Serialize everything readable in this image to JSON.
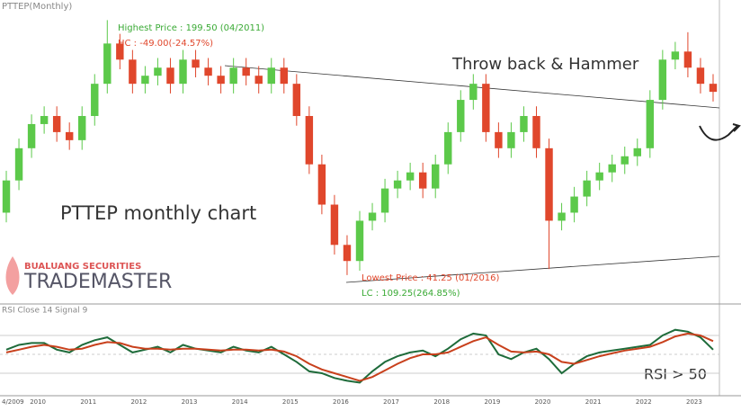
{
  "chart_data": {
    "type": "candlestick",
    "title": "PTTEP(Monthly)",
    "annotations": {
      "highest": "Highest Price : 199.50 (04/2011)",
      "hc": "HC : -49.00(-24.57%)",
      "throwback": "Throw back & Hammer",
      "chart_name": "PTTEP monthly chart",
      "lowest": "Lowest Price : 41.25 (01/2016)",
      "lc": "LC : 109.25(264.85%)",
      "rsi_note": "RSI > 50"
    },
    "logo": {
      "company": "BUALUANG SECURITIES",
      "product": "TRADEMASTER"
    },
    "x_labels": [
      "4/2009",
      "2010",
      "2011",
      "2012",
      "2013",
      "2014",
      "2015",
      "2016",
      "2017",
      "2018",
      "2019",
      "2020",
      "2021",
      "2022",
      "2023"
    ],
    "ylim": [
      25,
      212
    ],
    "up_color": "#5cc94a",
    "down_color": "#e0472c",
    "open": [
      80,
      100,
      120,
      135,
      140,
      130,
      125,
      140,
      160,
      185,
      175,
      160,
      165,
      170,
      160,
      175,
      170,
      165,
      160,
      170,
      165,
      160,
      170,
      160,
      140,
      110,
      85,
      60,
      50,
      75,
      80,
      95,
      100,
      105,
      95,
      110,
      130,
      150,
      160,
      130,
      120,
      130,
      140,
      120,
      75,
      80,
      90,
      100,
      105,
      110,
      115,
      120,
      150,
      175,
      180,
      170,
      160
    ],
    "high": [
      106,
      126,
      141,
      146,
      146,
      136,
      146,
      166,
      199.5,
      191,
      181,
      171,
      176,
      176,
      181,
      181,
      176,
      171,
      176,
      176,
      171,
      176,
      176,
      166,
      146,
      116,
      91,
      66,
      81,
      86,
      101,
      106,
      111,
      111,
      116,
      136,
      156,
      166,
      166,
      136,
      136,
      146,
      146,
      126,
      86,
      96,
      106,
      111,
      116,
      121,
      126,
      156,
      181,
      186,
      192,
      176,
      166
    ],
    "low": [
      74,
      94,
      114,
      129,
      124,
      119,
      119,
      134,
      154,
      169,
      154,
      154,
      159,
      154,
      154,
      164,
      159,
      154,
      154,
      159,
      154,
      154,
      154,
      134,
      104,
      79,
      54,
      41.25,
      44,
      69,
      74,
      89,
      94,
      89,
      89,
      104,
      124,
      144,
      124,
      114,
      114,
      124,
      114,
      45,
      69,
      74,
      84,
      94,
      99,
      104,
      109,
      114,
      144,
      169,
      164,
      154,
      149
    ],
    "close": [
      100,
      120,
      135,
      140,
      130,
      125,
      140,
      160,
      185,
      175,
      160,
      165,
      170,
      160,
      175,
      170,
      165,
      160,
      170,
      165,
      160,
      170,
      160,
      140,
      110,
      85,
      60,
      50,
      75,
      80,
      95,
      100,
      105,
      95,
      110,
      130,
      150,
      160,
      130,
      120,
      130,
      140,
      120,
      75,
      80,
      90,
      100,
      105,
      110,
      115,
      120,
      150,
      175,
      180,
      170,
      160,
      155
    ],
    "rsi": {
      "title": "RSI Close 14 Signal 9",
      "ylim": [
        10,
        90
      ],
      "levels": [
        70,
        50,
        30
      ],
      "series": [
        {
          "name": "RSI",
          "color": "#1e6b3a",
          "values": [
            55,
            60,
            62,
            62,
            55,
            52,
            60,
            65,
            68,
            60,
            52,
            55,
            58,
            52,
            60,
            56,
            54,
            52,
            58,
            54,
            52,
            58,
            50,
            42,
            32,
            30,
            25,
            22,
            20,
            32,
            42,
            48,
            52,
            54,
            48,
            56,
            66,
            72,
            70,
            50,
            45,
            52,
            56,
            45,
            30,
            40,
            48,
            52,
            54,
            56,
            58,
            60,
            70,
            76,
            74,
            68,
            55
          ]
        },
        {
          "name": "Signal",
          "color": "#c8401c",
          "values": [
            52,
            55,
            58,
            60,
            58,
            55,
            56,
            60,
            63,
            62,
            58,
            56,
            56,
            55,
            56,
            56,
            55,
            54,
            55,
            55,
            54,
            55,
            53,
            48,
            40,
            34,
            30,
            26,
            22,
            26,
            33,
            40,
            46,
            50,
            50,
            52,
            58,
            64,
            68,
            60,
            53,
            52,
            53,
            50,
            42,
            40,
            44,
            48,
            51,
            54,
            56,
            58,
            63,
            69,
            72,
            70,
            64
          ]
        }
      ]
    }
  }
}
